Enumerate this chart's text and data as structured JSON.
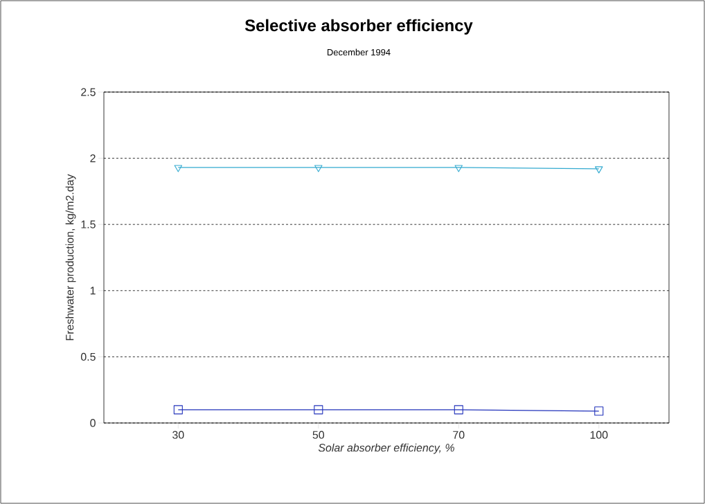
{
  "chart_data": {
    "type": "line",
    "title": "Selective absorber efficiency",
    "subtitle": "December 1994",
    "xlabel": "Solar absorber efficiency, %",
    "ylabel": "Freshwater production, kg/m2.day",
    "categories": [
      "30",
      "50",
      "70",
      "100"
    ],
    "series": [
      {
        "color": "#33aad0",
        "marker": "triangle",
        "values": [
          1.93,
          1.93,
          1.93,
          1.92
        ]
      },
      {
        "color": "#2233bb",
        "marker": "square",
        "values": [
          0.1,
          0.1,
          0.1,
          0.09
        ]
      }
    ],
    "ylim": [
      0,
      2.5
    ],
    "yticks": [
      0,
      0.5,
      1,
      1.5,
      2,
      2.5
    ],
    "grid": "y",
    "line_style": "solid"
  }
}
